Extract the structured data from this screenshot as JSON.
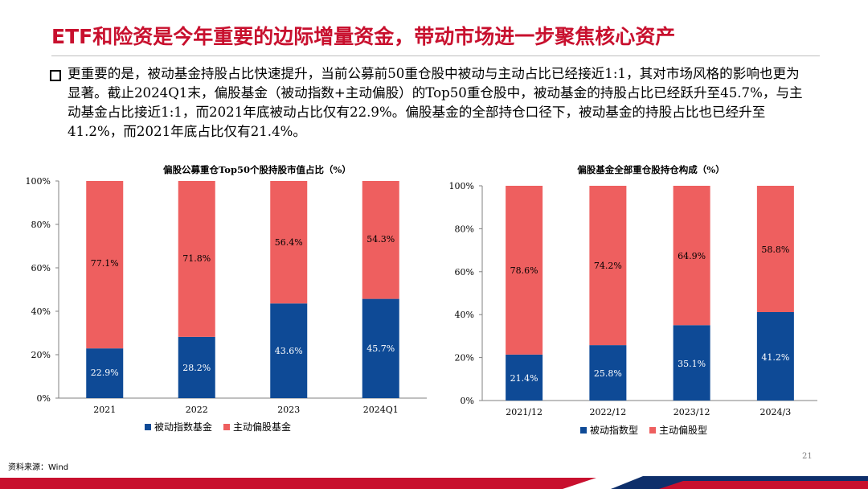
{
  "slide": {
    "title": "ETF和险资是今年重要的边际增量资金，带动市场进一步聚焦核心资产",
    "body": "更重要的是，被动基金持股占比快速提升，当前公募前50重仓股中被动与主动占比已经接近1:1，其对市场风格的影响也更为显著。截止2024Q1末，偏股基金（被动指数+主动偏股）的Top50重仓股中，被动基金的持股占比已经跃升至45.7%，与主动基金占比接近1:1，而2021年底被动占比仅有22.9%。偏股基金的全部持仓口径下，被动基金的持股占比也已经升至41.2%，而2021年底占比仅有21.4%。",
    "source": "资料来源：Wind",
    "page_number": "21"
  },
  "colors": {
    "title": "#c8102e",
    "passive": "#0e4a96",
    "active": "#ee5f5f"
  },
  "chart_data": [
    {
      "type": "bar",
      "stacked": true,
      "title": "偏股公募重仓Top50个股持股市值占比（%）",
      "categories": [
        "2021",
        "2022",
        "2023",
        "2024Q1"
      ],
      "y_ticks": [
        "0%",
        "20%",
        "40%",
        "60%",
        "80%",
        "100%"
      ],
      "ylim": [
        0,
        100
      ],
      "series": [
        {
          "name": "被动指数基金",
          "values": [
            22.9,
            28.2,
            43.6,
            45.7
          ],
          "labels": [
            "22.9%",
            "28.2%",
            "43.6%",
            "45.7%"
          ]
        },
        {
          "name": "主动偏股基金",
          "values": [
            77.1,
            71.8,
            56.4,
            54.3
          ],
          "labels": [
            "77.1%",
            "71.8%",
            "56.4%",
            "54.3%"
          ]
        }
      ],
      "legend_position": "bottom"
    },
    {
      "type": "bar",
      "stacked": true,
      "title": "偏股基金全部重仓股持仓构成（%）",
      "categories": [
        "2021/12",
        "2022/12",
        "2023/12",
        "2024/3"
      ],
      "y_ticks": [
        "0%",
        "20%",
        "40%",
        "60%",
        "80%",
        "100%"
      ],
      "ylim": [
        0,
        100
      ],
      "series": [
        {
          "name": "被动指数型",
          "values": [
            21.4,
            25.8,
            35.1,
            41.2
          ],
          "labels": [
            "21.4%",
            "25.8%",
            "35.1%",
            "41.2%"
          ]
        },
        {
          "name": "主动偏股型",
          "values": [
            78.6,
            74.2,
            64.9,
            58.8
          ],
          "labels": [
            "78.6%",
            "74.2%",
            "64.9%",
            "58.8%"
          ]
        }
      ],
      "legend_position": "bottom"
    }
  ]
}
